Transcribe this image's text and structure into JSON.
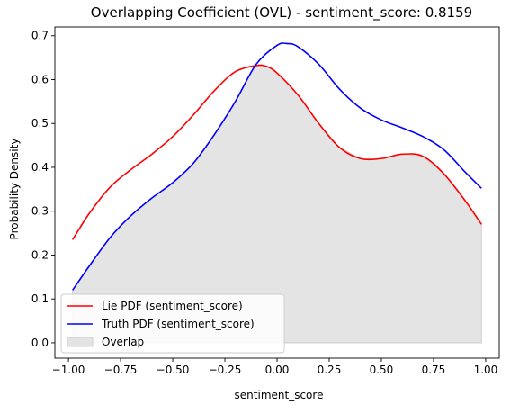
{
  "chart_data": {
    "type": "line",
    "title": "Overlapping Coefficient (OVL) - sentiment_score: 0.8159",
    "xlabel": "sentiment_score",
    "ylabel": "Probability Density",
    "xlim": [
      -1.065,
      1.065
    ],
    "ylim": [
      -0.035,
      0.72
    ],
    "xticks": [
      -1.0,
      -0.75,
      -0.5,
      -0.25,
      0.0,
      0.25,
      0.5,
      0.75,
      1.0
    ],
    "xtick_labels": [
      "−1.00",
      "−0.75",
      "−0.50",
      "−0.25",
      "0.00",
      "0.25",
      "0.50",
      "0.75",
      "1.00"
    ],
    "yticks": [
      0.0,
      0.1,
      0.2,
      0.3,
      0.4,
      0.5,
      0.6,
      0.7
    ],
    "ytick_labels": [
      "0.0",
      "0.1",
      "0.2",
      "0.3",
      "0.4",
      "0.5",
      "0.6",
      "0.7"
    ],
    "grid": false,
    "legend_position": "lower-left",
    "series": [
      {
        "name": "Lie PDF (sentiment_score)",
        "color": "#ff0000",
        "x": [
          -0.98,
          -0.9,
          -0.8,
          -0.7,
          -0.6,
          -0.5,
          -0.4,
          -0.3,
          -0.2,
          -0.1,
          -0.05,
          0.0,
          0.1,
          0.2,
          0.3,
          0.4,
          0.5,
          0.6,
          0.7,
          0.8,
          0.9,
          0.98
        ],
        "y": [
          0.235,
          0.295,
          0.355,
          0.395,
          0.43,
          0.47,
          0.52,
          0.575,
          0.618,
          0.632,
          0.63,
          0.615,
          0.565,
          0.5,
          0.445,
          0.42,
          0.42,
          0.43,
          0.425,
          0.385,
          0.325,
          0.27
        ]
      },
      {
        "name": "Truth PDF (sentiment_score)",
        "color": "#0000ff",
        "x": [
          -0.98,
          -0.9,
          -0.8,
          -0.7,
          -0.6,
          -0.5,
          -0.4,
          -0.3,
          -0.2,
          -0.1,
          0.0,
          0.05,
          0.1,
          0.2,
          0.3,
          0.4,
          0.5,
          0.6,
          0.7,
          0.8,
          0.9,
          0.98
        ],
        "y": [
          0.12,
          0.175,
          0.24,
          0.29,
          0.33,
          0.365,
          0.41,
          0.475,
          0.55,
          0.635,
          0.678,
          0.682,
          0.675,
          0.635,
          0.578,
          0.535,
          0.508,
          0.49,
          0.47,
          0.44,
          0.39,
          0.352
        ]
      }
    ],
    "overlap": {
      "name": "Overlap",
      "color": "#d3d3d3"
    }
  }
}
